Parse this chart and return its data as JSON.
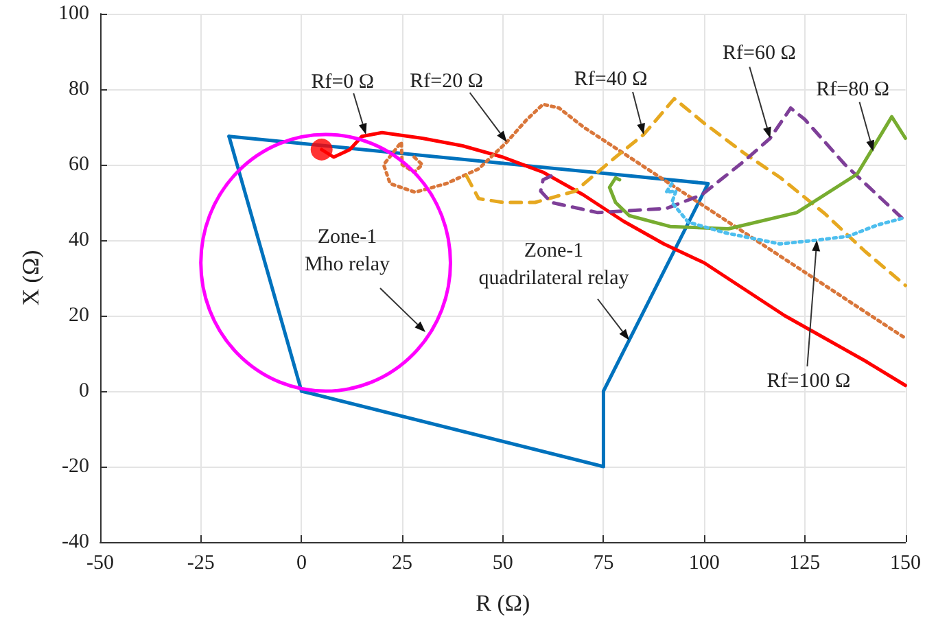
{
  "chart_data": {
    "type": "line",
    "xlabel": "R (Ω)",
    "ylabel": "X (Ω)",
    "xlim": [
      -50,
      150
    ],
    "ylim": [
      -40,
      100
    ],
    "xticks": [
      -50,
      -25,
      0,
      25,
      50,
      75,
      100,
      125,
      150
    ],
    "yticks": [
      -40,
      -20,
      0,
      20,
      40,
      60,
      80,
      100
    ],
    "grid": true,
    "marker": "none",
    "line_style": "solid",
    "series": [
      {
        "color": "#0072bd",
        "x": [
          -18,
          101,
          75,
          75,
          0
        ],
        "values": [
          67.5,
          55,
          0,
          -20,
          0
        ]
      },
      {
        "color": "#0072bd",
        "x": [
          0,
          -18
        ],
        "values": [
          0,
          67.5
        ]
      },
      {
        "color": "#ff0000",
        "x": [
          5,
          8,
          12,
          15,
          20,
          30,
          40,
          50,
          60,
          70,
          80,
          90,
          100,
          110,
          120,
          130,
          140,
          150
        ],
        "values": [
          64,
          62,
          64,
          67.5,
          68.5,
          67,
          65,
          62,
          58,
          52,
          45,
          39,
          34,
          27,
          20,
          14,
          8,
          1.5
        ]
      },
      {
        "color": "#d9763a",
        "line_style": "dotted",
        "x": [
          28,
          30,
          28,
          25,
          24.8,
          20.4,
          22,
          28.2,
          36,
          44,
          51,
          56,
          60,
          64,
          70,
          80,
          90,
          100,
          110,
          120,
          130,
          140,
          150
        ],
        "values": [
          62,
          60,
          58,
          60,
          66,
          60,
          55,
          52.7,
          55,
          58.9,
          66,
          72,
          76,
          75,
          70,
          63,
          56,
          49,
          42,
          35,
          28,
          21,
          14
        ]
      },
      {
        "color": "#e6a820",
        "line_style": "dashed",
        "x": [
          41,
          44,
          50,
          58,
          68,
          78,
          85,
          92.6,
          100,
          110,
          119,
          130,
          140,
          150
        ],
        "values": [
          57,
          51,
          50,
          50,
          53,
          62,
          68,
          77.5,
          71,
          63,
          56.5,
          47,
          37,
          28
        ]
      },
      {
        "color": "#7e3f98",
        "line_style": "dashed",
        "x": [
          62,
          60,
          59.4,
          62,
          73.6,
          90.6,
          99.4,
          110,
          116.4,
          121.5,
          125,
          135,
          145,
          150
        ],
        "values": [
          57,
          56,
          53,
          50,
          47.3,
          48.4,
          52,
          61,
          67,
          75,
          72,
          60,
          50,
          45
        ]
      },
      {
        "color": "#77ac30",
        "x": [
          79,
          78,
          76.5,
          78,
          81.4,
          91.6,
          106,
          123,
          138,
          146.6,
          150
        ],
        "values": [
          56,
          56.5,
          54,
          50,
          46.5,
          43.6,
          43,
          47.3,
          57.5,
          72.7,
          67
        ]
      },
      {
        "color": "#4dbeee",
        "line_style": "dotted",
        "x": [
          92,
          90.6,
          93,
          92,
          96,
          105,
          118.8,
          128,
          135.7,
          143,
          150
        ],
        "values": [
          55,
          52.7,
          53,
          50,
          44.8,
          42,
          39,
          40,
          41,
          44,
          46
        ]
      },
      {
        "type": "scatter",
        "marker": "circle",
        "color": "#ff0000",
        "x": [
          5
        ],
        "values": [
          64
        ]
      }
    ],
    "annotations": [
      {
        "text": "Rf=0 Ω",
        "x": 16,
        "y": 68
      },
      {
        "text": "Rf=20 Ω",
        "x": 51,
        "y": 66
      },
      {
        "text": "Rf=40 Ω",
        "x": 85,
        "y": 68
      },
      {
        "text": "Rf=60 Ω",
        "x": 116.4,
        "y": 67
      },
      {
        "text": "Rf=80 Ω",
        "x": 142,
        "y": 63.5
      },
      {
        "text": "Rf=100 Ω",
        "x": 128,
        "y": 40
      },
      "Zone-1\nMho relay",
      {
        "text": "Zone-1\nquadrilateral relay",
        "x": 81.4,
        "y": 13.5
      }
    ]
  }
}
